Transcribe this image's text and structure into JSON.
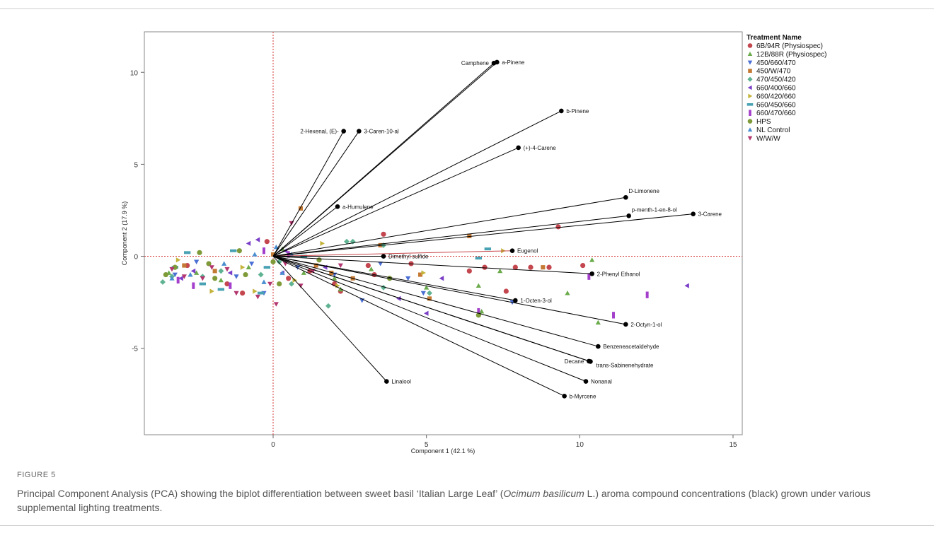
{
  "figure": {
    "label": "FIGURE 5",
    "caption_part1": "Principal Component Analysis (PCA) showing the biplot differentiation between sweet basil ‘Italian Large Leaf’ (",
    "caption_italic": "Ocimum basilicum",
    "caption_part2": " L.) aroma compound concentrations (black) grown under various supplemental lighting treatments."
  },
  "colors": {
    "vector": "#000000",
    "highlight_vector": "#c8464a",
    "reference_line": "#d33a3a",
    "frame": "#8a8a8a"
  },
  "chart_data": {
    "type": "scatter",
    "xlabel": "Component 1 (42.1 %)",
    "ylabel": "Component 2 (17.9 %)",
    "xlim": [
      -4.2,
      15.3
    ],
    "ylim": [
      -9.7,
      12.2
    ],
    "xticks": [
      0,
      5,
      10,
      15
    ],
    "yticks": [
      -5,
      0,
      5,
      10
    ],
    "reference_lines": {
      "x": 0,
      "y": 0
    },
    "grid": false,
    "legend_position": "right",
    "legend_title": "Treatment Name",
    "series": [
      {
        "name": "6B/94R (Physiospec)",
        "color": "#c4464e",
        "marker": "circle",
        "points": [
          [
            3.6,
            1.2
          ],
          [
            9.3,
            1.6
          ],
          [
            6.4,
            -0.8
          ],
          [
            6.9,
            -0.6
          ],
          [
            7.9,
            -0.6
          ],
          [
            8.4,
            -0.6
          ],
          [
            9.0,
            -0.6
          ],
          [
            10.1,
            -0.5
          ],
          [
            7.6,
            -1.9
          ],
          [
            3.1,
            -0.5
          ],
          [
            4.5,
            -0.4
          ],
          [
            1.2,
            -0.8
          ],
          [
            2.0,
            -1.5
          ],
          [
            -1.0,
            -2.0
          ],
          [
            -1.5,
            -1.5
          ],
          [
            -2.8,
            -0.5
          ],
          [
            -0.2,
            0.8
          ],
          [
            0.5,
            -1.2
          ],
          [
            2.2,
            -1.9
          ],
          [
            3.3,
            -1.0
          ]
        ]
      },
      {
        "name": "12B/88R (Physiospec)",
        "color": "#6bab4c",
        "marker": "triangle-up",
        "points": [
          [
            10.4,
            -0.2
          ],
          [
            7.4,
            -0.8
          ],
          [
            6.7,
            -1.6
          ],
          [
            9.6,
            -2.0
          ],
          [
            10.6,
            -3.6
          ],
          [
            6.8,
            -3.0
          ],
          [
            5.0,
            -1.7
          ],
          [
            3.2,
            -0.7
          ],
          [
            2.0,
            -1.2
          ],
          [
            1.0,
            -0.9
          ],
          [
            -0.8,
            -0.6
          ],
          [
            -2.5,
            -0.9
          ],
          [
            -3.4,
            -0.9
          ],
          [
            -1.7,
            -1.3
          ],
          [
            0.3,
            0.4
          ],
          [
            2.2,
            -1.8
          ]
        ]
      },
      {
        "name": "450/660/470",
        "color": "#4a6fd4",
        "marker": "triangle-down",
        "points": [
          [
            7.8,
            -2.5
          ],
          [
            3.5,
            -0.4
          ],
          [
            4.4,
            -1.2
          ],
          [
            2.9,
            -2.4
          ],
          [
            -0.3,
            -2.0
          ],
          [
            -1.2,
            -1.1
          ],
          [
            -2.5,
            -0.3
          ],
          [
            -3.2,
            -1.0
          ],
          [
            0.8,
            -0.6
          ],
          [
            -0.7,
            -0.4
          ],
          [
            4.9,
            -2.0
          ],
          [
            2.0,
            -1.0
          ]
        ]
      },
      {
        "name": "450/W/470",
        "color": "#c47a35",
        "marker": "square",
        "points": [
          [
            0.9,
            2.6
          ],
          [
            6.4,
            1.1
          ],
          [
            8.8,
            -0.6
          ],
          [
            4.8,
            -1.0
          ],
          [
            3.5,
            0.6
          ],
          [
            2.6,
            -1.2
          ],
          [
            1.4,
            -0.5
          ],
          [
            0.0,
            0.1
          ],
          [
            -1.9,
            -0.8
          ],
          [
            -2.9,
            -0.5
          ],
          [
            1.9,
            -0.9
          ],
          [
            5.1,
            -2.3
          ]
        ]
      },
      {
        "name": "470/450/420",
        "color": "#5fb392",
        "marker": "diamond",
        "points": [
          [
            2.4,
            0.8
          ],
          [
            2.6,
            0.8
          ],
          [
            3.6,
            0.6
          ],
          [
            5.1,
            -2.0
          ],
          [
            3.6,
            -1.7
          ],
          [
            1.8,
            -2.7
          ],
          [
            0.6,
            -1.5
          ],
          [
            -0.4,
            -1.0
          ],
          [
            -2.3,
            -1.1
          ],
          [
            -3.6,
            -1.4
          ],
          [
            -3.3,
            -1.1
          ],
          [
            -1.7,
            -0.8
          ],
          [
            0.2,
            -0.3
          ]
        ]
      },
      {
        "name": "660/400/660",
        "color": "#7b3fc7",
        "marker": "triangle-left",
        "points": [
          [
            13.5,
            -1.6
          ],
          [
            5.5,
            -1.2
          ],
          [
            5.0,
            -3.1
          ],
          [
            4.1,
            -2.3
          ],
          [
            1.7,
            -0.6
          ],
          [
            0.4,
            0.3
          ],
          [
            -0.5,
            0.9
          ],
          [
            -1.4,
            -0.9
          ],
          [
            -2.6,
            -0.8
          ],
          [
            -3.0,
            -1.2
          ],
          [
            0.3,
            -0.9
          ],
          [
            -0.8,
            0.7
          ]
        ]
      },
      {
        "name": "660/420/660",
        "color": "#c4b43c",
        "marker": "triangle-right",
        "points": [
          [
            7.5,
            0.3
          ],
          [
            4.9,
            -0.9
          ],
          [
            2.1,
            -1.6
          ],
          [
            -0.6,
            -1.9
          ],
          [
            -2.0,
            -1.9
          ],
          [
            -3.1,
            -0.2
          ],
          [
            0.7,
            -1.3
          ],
          [
            -1.0,
            -0.6
          ],
          [
            1.6,
            0.7
          ]
        ]
      },
      {
        "name": "660/450/660",
        "color": "#49a2b3",
        "marker": "dash",
        "points": [
          [
            7.0,
            0.4
          ],
          [
            6.7,
            -0.1
          ],
          [
            1.0,
            0.0
          ],
          [
            -0.2,
            -0.6
          ],
          [
            -1.3,
            0.3
          ],
          [
            -2.3,
            -1.5
          ],
          [
            -3.2,
            -0.6
          ],
          [
            -0.4,
            -2.0
          ],
          [
            -1.7,
            -1.8
          ],
          [
            -2.8,
            0.2
          ]
        ]
      },
      {
        "name": "660/470/660",
        "color": "#a33fcb",
        "marker": "bar",
        "points": [
          [
            12.2,
            -2.1
          ],
          [
            11.1,
            -3.2
          ],
          [
            10.3,
            -1.1
          ],
          [
            6.7,
            -3.0
          ],
          [
            -0.3,
            0.3
          ],
          [
            -1.4,
            -1.6
          ],
          [
            -2.6,
            -1.6
          ],
          [
            -3.1,
            -1.3
          ],
          [
            0.5,
            0.1
          ]
        ]
      },
      {
        "name": "HPS",
        "color": "#7f9b39",
        "marker": "circle",
        "points": [
          [
            6.7,
            -3.2
          ],
          [
            3.8,
            -1.2
          ],
          [
            1.5,
            -0.2
          ],
          [
            0.2,
            -1.5
          ],
          [
            -0.9,
            -1.0
          ],
          [
            -2.1,
            -0.4
          ],
          [
            -3.5,
            -1.0
          ],
          [
            -3.2,
            -0.6
          ],
          [
            -1.1,
            0.3
          ],
          [
            -1.9,
            -1.2
          ],
          [
            0.0,
            -0.3
          ],
          [
            -2.4,
            0.2
          ]
        ]
      },
      {
        "name": "NL Control",
        "color": "#4a8ed0",
        "marker": "triangle-up",
        "points": [
          [
            0.1,
            0.5
          ],
          [
            -0.6,
            0.1
          ],
          [
            -1.6,
            -0.4
          ],
          [
            -2.7,
            -1.0
          ],
          [
            0.3,
            -0.9
          ],
          [
            -0.3,
            -1.4
          ],
          [
            -3.3,
            -1.2
          ],
          [
            0.6,
            0.1
          ]
        ]
      },
      {
        "name": "W/W/W",
        "color": "#b3366f",
        "marker": "triangle-down",
        "points": [
          [
            0.6,
            1.8
          ],
          [
            2.2,
            -0.5
          ],
          [
            1.3,
            -0.8
          ],
          [
            0.1,
            -2.6
          ],
          [
            -0.5,
            -2.2
          ],
          [
            -1.5,
            -0.7
          ],
          [
            -2.3,
            -1.2
          ],
          [
            -2.9,
            -1.1
          ],
          [
            -3.3,
            -0.7
          ],
          [
            0.9,
            -1.6
          ],
          [
            -0.1,
            -1.5
          ],
          [
            -1.2,
            -2.0
          ],
          [
            -2.0,
            -0.6
          ],
          [
            0.4,
            -0.4
          ]
        ]
      }
    ],
    "vectors": [
      {
        "label": "Camphene",
        "x": 7.2,
        "y": 10.5,
        "side": "left"
      },
      {
        "label": "a-Pinene",
        "x": 7.3,
        "y": 10.55,
        "side": "right"
      },
      {
        "label": "b-Pinene",
        "x": 9.4,
        "y": 7.9,
        "side": "right"
      },
      {
        "label": "2-Hexenal, (E)-",
        "x": 2.3,
        "y": 6.8,
        "side": "left"
      },
      {
        "label": "3-Caren-10-al",
        "x": 2.8,
        "y": 6.8,
        "side": "right"
      },
      {
        "label": "(+)-4-Carene",
        "x": 8.0,
        "y": 5.9,
        "side": "right"
      },
      {
        "label": "a-Humulene",
        "x": 2.1,
        "y": 2.7,
        "side": "right"
      },
      {
        "label": "D-Limonene",
        "x": 11.5,
        "y": 3.2,
        "side": "right-up"
      },
      {
        "label": "p-menth-1-en-8-ol",
        "x": 11.6,
        "y": 2.2,
        "side": "right-up"
      },
      {
        "label": "3-Carene",
        "x": 13.7,
        "y": 2.3,
        "side": "right"
      },
      {
        "label": "Eugenol",
        "x": 7.8,
        "y": 0.3,
        "side": "right",
        "highlight": true
      },
      {
        "label": "Dimethyl sulfide",
        "x": 3.6,
        "y": 0.0,
        "side": "right"
      },
      {
        "label": "2-Phenyl Ethanol",
        "x": 10.4,
        "y": -0.95,
        "side": "right"
      },
      {
        "label": "1-Octen-3-ol",
        "x": 7.9,
        "y": -2.4,
        "side": "right"
      },
      {
        "label": "2-Octyn-1-ol",
        "x": 11.5,
        "y": -3.7,
        "side": "right"
      },
      {
        "label": "Benzeneacetaldehyde",
        "x": 10.6,
        "y": -4.9,
        "side": "right"
      },
      {
        "label": "Decane",
        "x": 10.3,
        "y": -5.7,
        "side": "left"
      },
      {
        "label": "trans-Sabinenehydrate",
        "x": 10.35,
        "y": -5.72,
        "side": "right-down"
      },
      {
        "label": "Nonanal",
        "x": 10.2,
        "y": -6.8,
        "side": "right"
      },
      {
        "label": "b-Myrcene",
        "x": 9.5,
        "y": -7.6,
        "side": "right"
      },
      {
        "label": "Linalool",
        "x": 3.7,
        "y": -6.8,
        "side": "right"
      }
    ]
  }
}
